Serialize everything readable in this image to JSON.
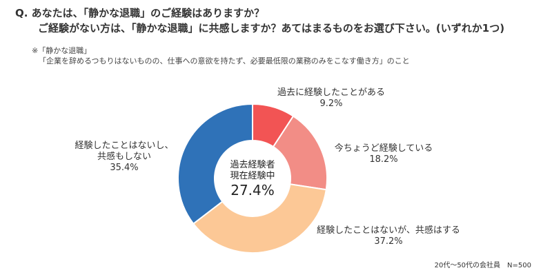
{
  "question": {
    "line1": "Q. あなたは、「静かな退職」のご経験はありますか？",
    "line2": "ご経験がない方は、「静かな退職」に共感しますか？あてはまるものをお選び下さい。(いずれか1つ)"
  },
  "note": {
    "term": "※「静かな退職」",
    "definition": "「企業を辞めるつもりはないものの、仕事への意欲を持たず、必要最低限の業務のみをこなす働き方」のこと"
  },
  "footnote": "20代～50代の会社員　N=500",
  "chart_data": {
    "type": "pie",
    "donut": true,
    "unit": "%",
    "slices": [
      {
        "label": "過去に経験したことがある",
        "value": 9.2,
        "value_label": "9.2%",
        "color": "#f25454"
      },
      {
        "label": "今ちょうど経験している",
        "value": 18.2,
        "value_label": "18.2%",
        "color": "#f28d86"
      },
      {
        "label": "経験したことはないが、共感はする",
        "value": 37.2,
        "value_label": "37.2%",
        "color": "#fcc896"
      },
      {
        "label": "経験したことはないし、共感もしない",
        "label_lines": [
          "経験したことはないし、",
          "共感もしない"
        ],
        "value": 35.4,
        "value_label": "35.4%",
        "color": "#2f72b8"
      }
    ],
    "center": {
      "line1": "過去経験者",
      "line2": "現在経験中",
      "value": "27.4%"
    }
  }
}
